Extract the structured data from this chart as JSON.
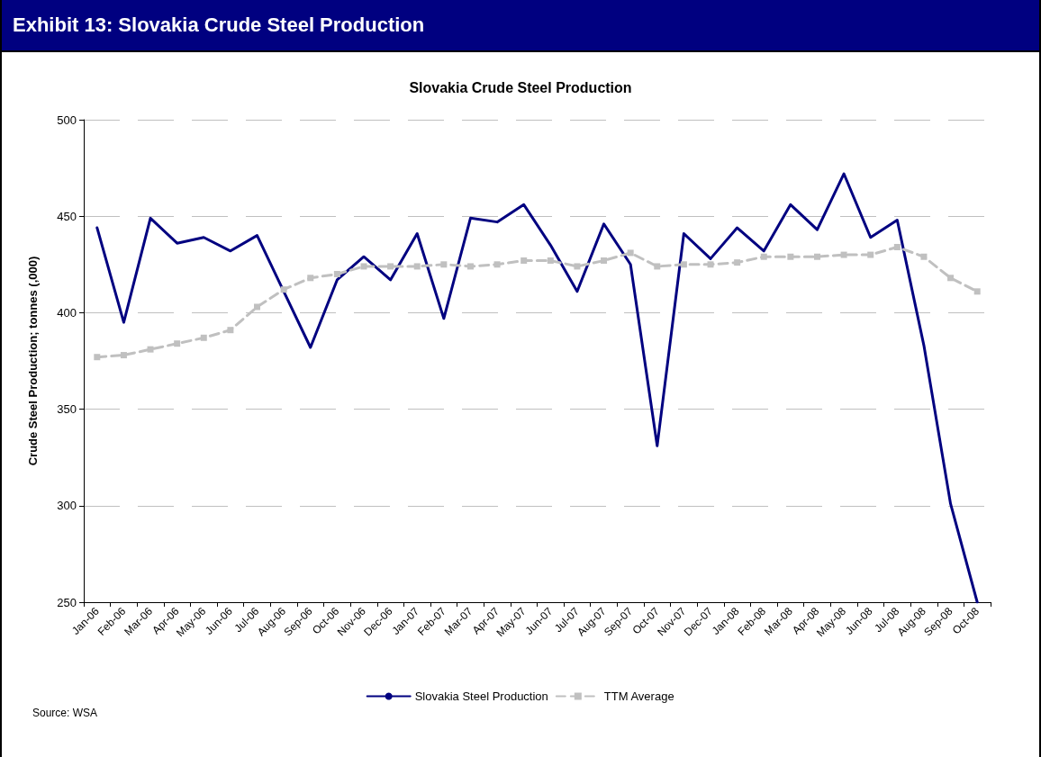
{
  "chart_data": {
    "type": "line",
    "title": "Exhibit 13: Slovakia Crude Steel Production",
    "subtitle": "Slovakia Crude Steel Production",
    "ylabel": "Crude Steel Production; tonnes (,000)",
    "annotations": [
      "Source: WSA"
    ],
    "categories": [
      "Jan-06",
      "Feb-06",
      "Mar-06",
      "Apr-06",
      "May-06",
      "Jun-06",
      "Jul-06",
      "Aug-06",
      "Sep-06",
      "Oct-06",
      "Nov-06",
      "Dec-06",
      "Jan-07",
      "Feb-07",
      "Mar-07",
      "Apr-07",
      "May-07",
      "Jun-07",
      "Jul-07",
      "Aug-07",
      "Sep-07",
      "Oct-07",
      "Nov-07",
      "Dec-07",
      "Jan-08",
      "Feb-08",
      "Mar-08",
      "Apr-08",
      "May-08",
      "Jun-08",
      "Jul-08",
      "Aug-08",
      "Sep-08",
      "Oct-08"
    ],
    "series": [
      {
        "name": "Slovakia Steel Production",
        "color": "#000080",
        "line_style": "solid",
        "marker": "none",
        "values": [
          444,
          395,
          449,
          436,
          439,
          432,
          440,
          411,
          382,
          417,
          429,
          417,
          441,
          397,
          449,
          447,
          456,
          435,
          411,
          446,
          425,
          331,
          441,
          428,
          444,
          432,
          456,
          443,
          472,
          439,
          448,
          383,
          301,
          250
        ]
      },
      {
        "name": "TTM Average",
        "color": "#c0c0c0",
        "line_style": "dashed",
        "marker": "square",
        "values": [
          377,
          378,
          381,
          384,
          387,
          391,
          403,
          412,
          418,
          420,
          424,
          424,
          424,
          425,
          424,
          425,
          427,
          427,
          424,
          427,
          431,
          424,
          425,
          425,
          426,
          429,
          429,
          429,
          430,
          430,
          434,
          429,
          418,
          411
        ]
      }
    ],
    "ylim": [
      250,
      500
    ],
    "yticks": [
      250,
      300,
      350,
      400,
      450,
      500
    ],
    "grid": "y",
    "legend": "bottom"
  }
}
